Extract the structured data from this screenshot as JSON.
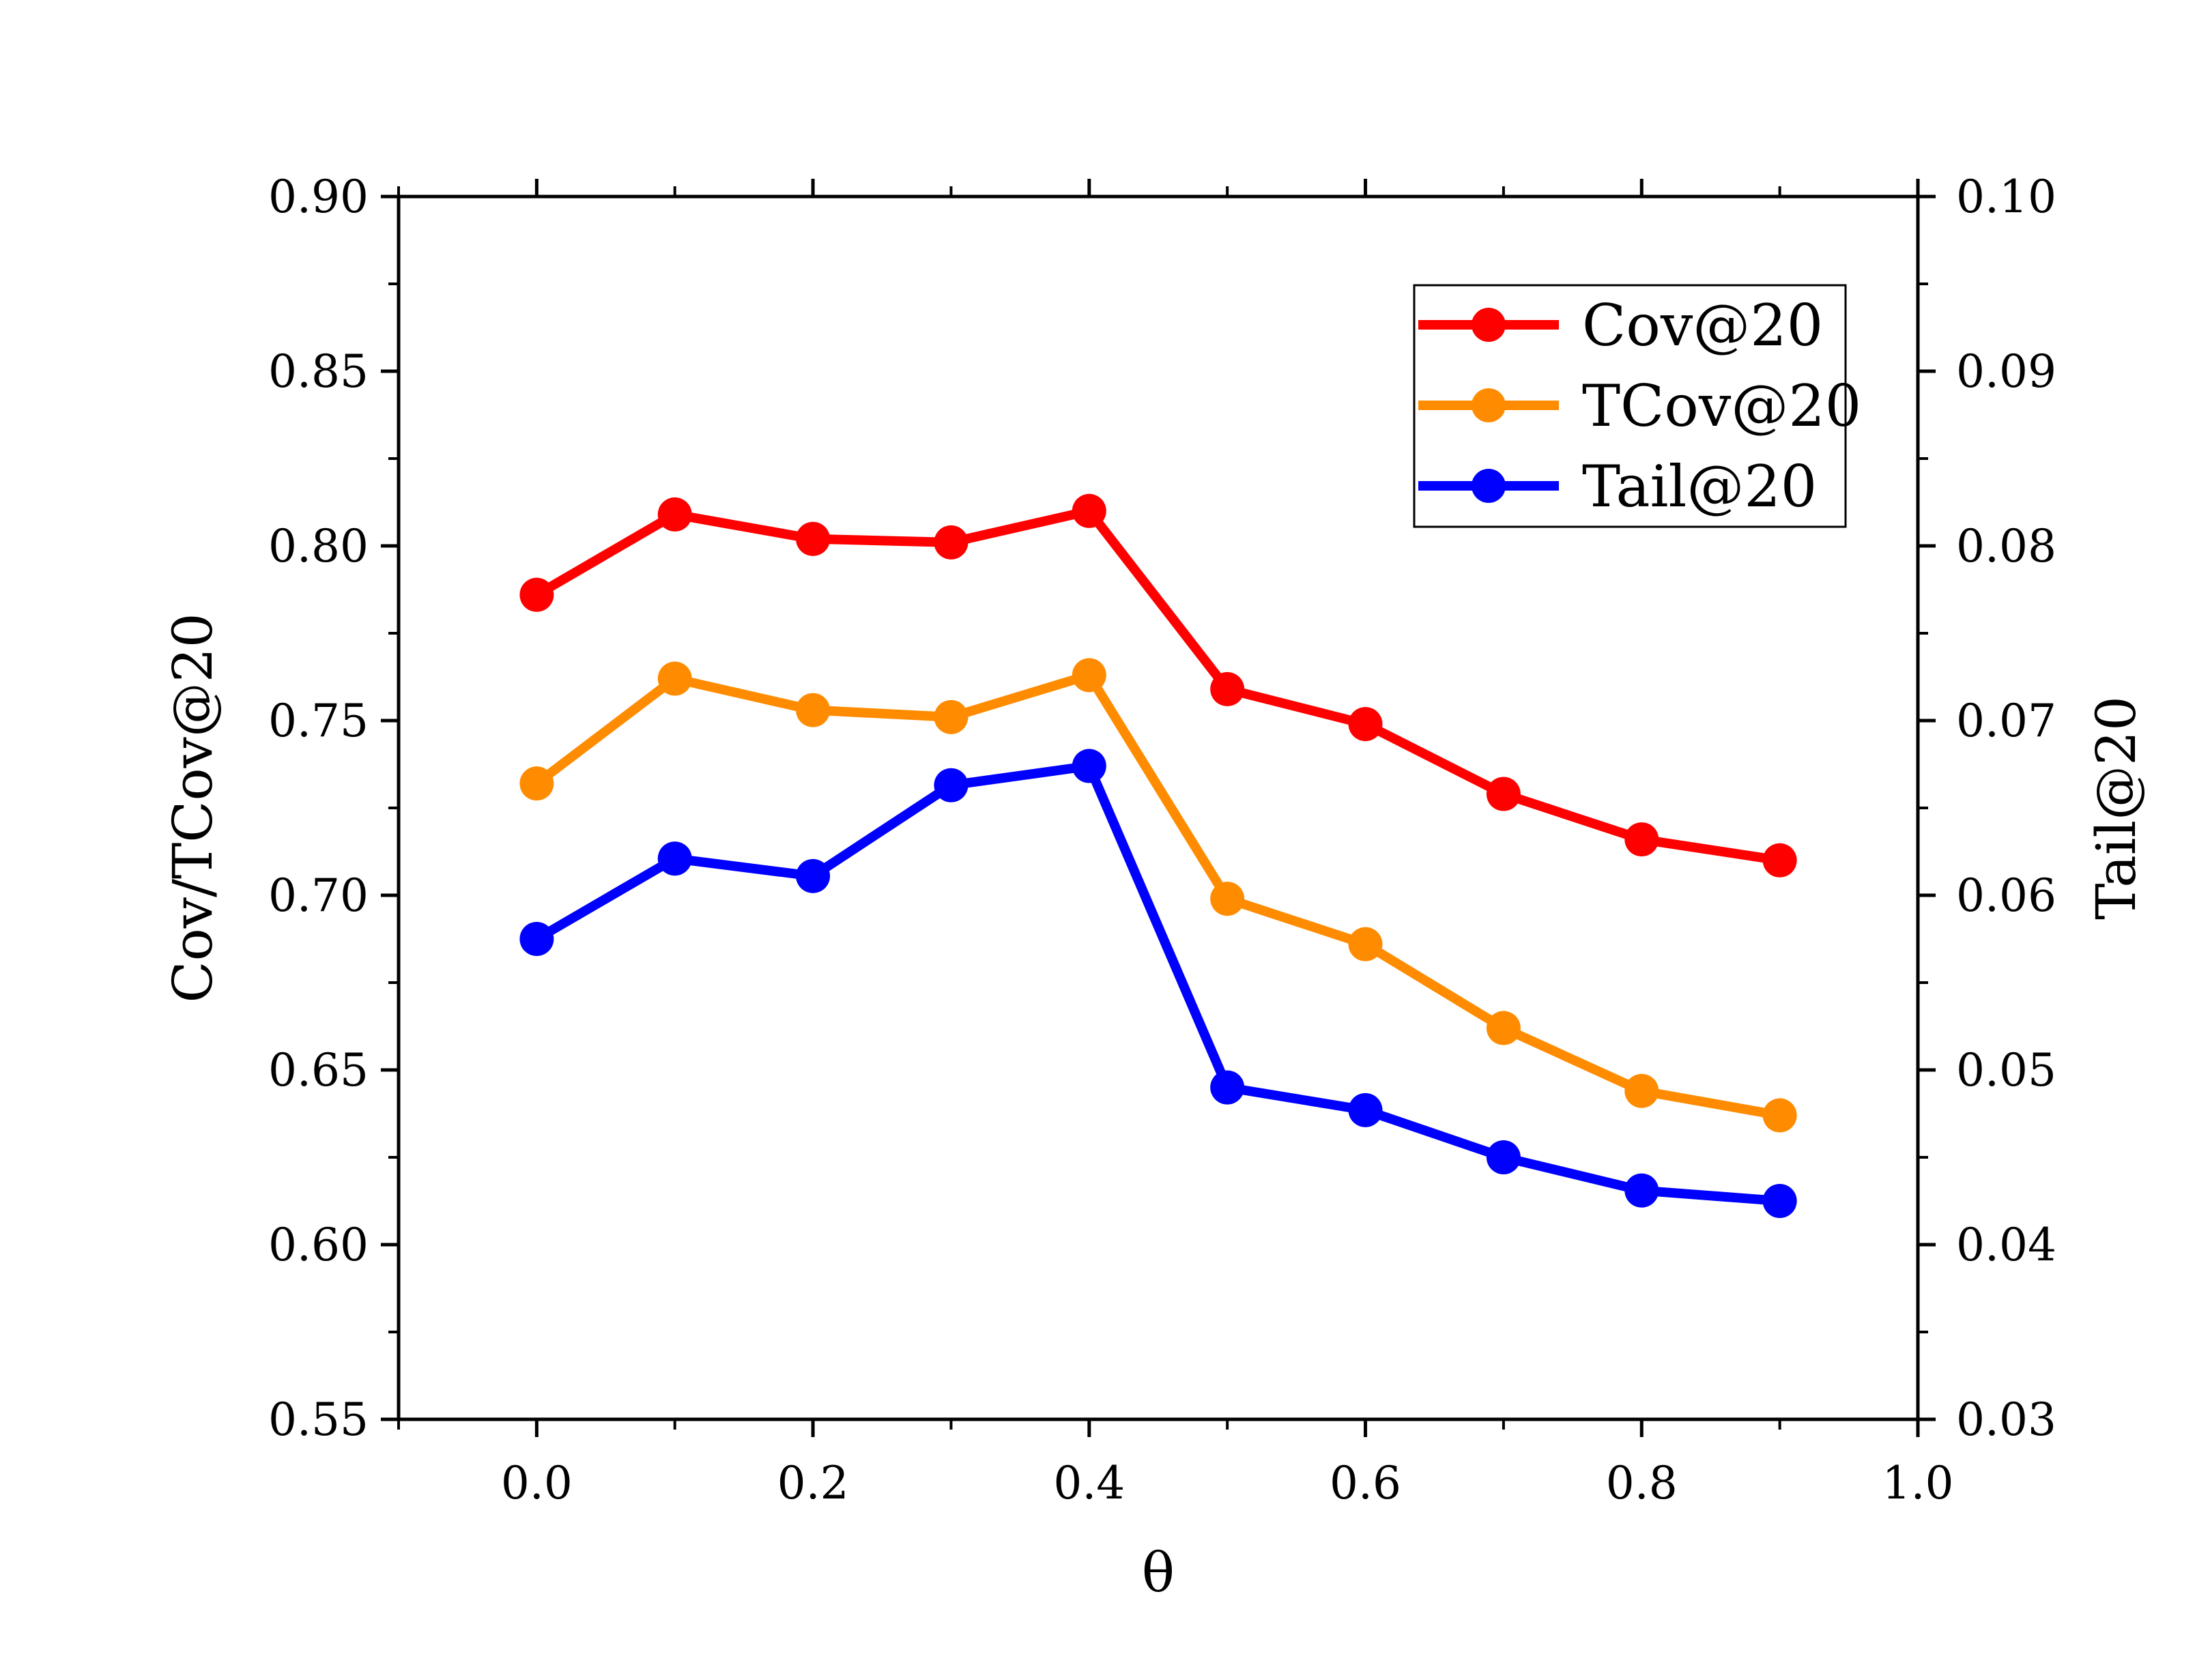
{
  "chart_data": {
    "type": "line",
    "xlabel": "θ",
    "ylabel_left": "Cov/TCov@20",
    "ylabel_right": "Tail@20",
    "xlim": [
      -0.1,
      1.0
    ],
    "ylim_left": [
      0.55,
      0.9
    ],
    "ylim_right": [
      0.03,
      0.1
    ],
    "x_ticks": [
      "0.0",
      "0.2",
      "0.4",
      "0.6",
      "0.8",
      "1.0"
    ],
    "x_tick_values": [
      0.0,
      0.2,
      0.4,
      0.6,
      0.8,
      1.0
    ],
    "y_left_ticks": [
      "0.55",
      "0.60",
      "0.65",
      "0.70",
      "0.75",
      "0.80",
      "0.85",
      "0.90"
    ],
    "y_left_tick_values": [
      0.55,
      0.6,
      0.65,
      0.7,
      0.75,
      0.8,
      0.85,
      0.9
    ],
    "y_right_ticks": [
      "0.03",
      "0.04",
      "0.05",
      "0.06",
      "0.07",
      "0.08",
      "0.09",
      "0.10"
    ],
    "y_right_tick_values": [
      0.03,
      0.04,
      0.05,
      0.06,
      0.07,
      0.08,
      0.09,
      0.1
    ],
    "x": [
      0.0,
      0.1,
      0.2,
      0.3,
      0.4,
      0.5,
      0.6,
      0.7,
      0.8,
      0.9
    ],
    "series": [
      {
        "name": "Cov@20",
        "axis": "left",
        "color": "#ff0000",
        "values": [
          0.786,
          0.809,
          0.802,
          0.801,
          0.81,
          0.759,
          0.749,
          0.729,
          0.716,
          0.71
        ]
      },
      {
        "name": "TCov@20",
        "axis": "left",
        "color": "#ff8c00",
        "values": [
          0.732,
          0.762,
          0.753,
          0.751,
          0.763,
          0.699,
          0.686,
          0.662,
          0.644,
          0.637
        ]
      },
      {
        "name": "Tail@20",
        "axis": "right",
        "color": "#0000ff",
        "values": [
          0.0575,
          0.0621,
          0.0611,
          0.0663,
          0.0674,
          0.049,
          0.0477,
          0.045,
          0.0431,
          0.0425
        ]
      }
    ],
    "legend": {
      "position": "top-right",
      "entries": [
        "Cov@20",
        "TCov@20",
        "Tail@20"
      ]
    },
    "grid": false
  }
}
